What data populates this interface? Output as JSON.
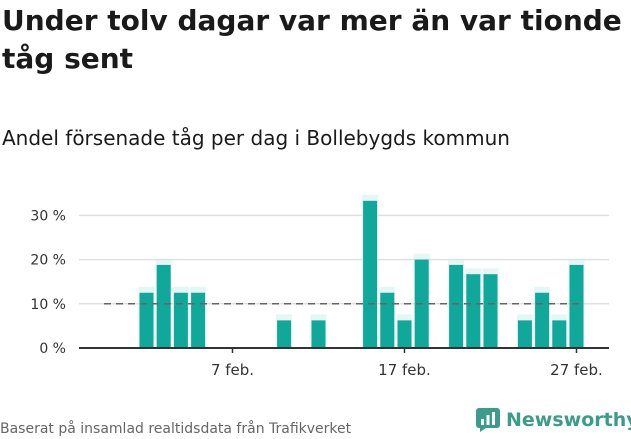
{
  "title": "Under tolv dagar var mer än var tionde tåg sent",
  "subtitle": "Andel försenade tåg per dag i Bollebygds kommun",
  "source": "Baserat på insamlad realtidsdata från Trafikverket",
  "brand": "Newsworthy",
  "colors": {
    "bar": "#10a89a",
    "bar_hover": "#c7ece7",
    "grid": "#e0e0e0",
    "reference": "#666666",
    "axis": "#333333",
    "brand": "#3a9c89"
  },
  "chart_data": {
    "type": "bar",
    "x": [
      "2 feb.",
      "3 feb.",
      "4 feb.",
      "5 feb.",
      "6 feb.",
      "7 feb.",
      "8 feb.",
      "9 feb.",
      "10 feb.",
      "11 feb.",
      "12 feb.",
      "13 feb.",
      "14 feb.",
      "15 feb.",
      "16 feb.",
      "17 feb.",
      "18 feb.",
      "19 feb.",
      "20 feb.",
      "21 feb.",
      "22 feb.",
      "23 feb.",
      "24 feb.",
      "25 feb.",
      "26 feb.",
      "27 feb.",
      "28 feb."
    ],
    "values": [
      12.5,
      18.8,
      12.5,
      12.5,
      0,
      0,
      0,
      0,
      6.25,
      0,
      6.25,
      0,
      0,
      33.3,
      12.5,
      6.25,
      20,
      0,
      18.8,
      16.7,
      16.7,
      0,
      6.25,
      12.5,
      6.25,
      18.8,
      0
    ],
    "ylim": [
      0,
      33.3
    ],
    "yticks": [
      0,
      10,
      20,
      30
    ],
    "ytick_labels": [
      "0 %",
      "10 %",
      "20 %",
      "30 %"
    ],
    "xtick_positions": [
      "7 feb.",
      "17 feb.",
      "27 feb."
    ],
    "xtick_labels": [
      "7 feb.",
      "17 feb.",
      "27 feb."
    ],
    "reference_line": 10,
    "grid": true
  }
}
